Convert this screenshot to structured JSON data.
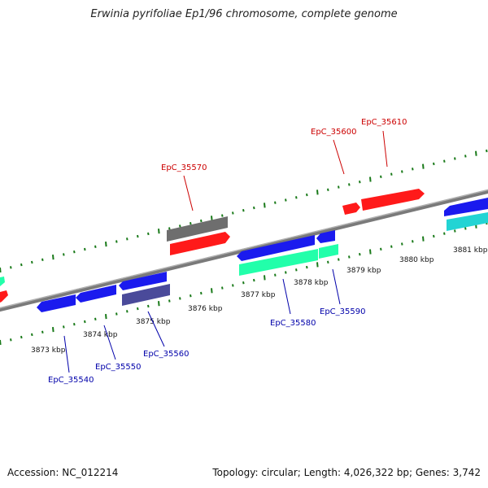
{
  "title": "Erwinia pyrifoliae Ep1/96 chromosome, complete genome",
  "footer": {
    "accession": "Accession: NC_012214",
    "summary": "Topology: circular; Length: 4,026,322 bp; Genes: 3,742"
  },
  "colors": {
    "backbone": "#8c8c8c",
    "tick": "#1a7a1a",
    "label_forward": "#cc0000",
    "label_reverse": "#0000aa",
    "gene_red": "#ff1a1a",
    "gene_blue": "#1a1aee",
    "gene_gray": "#707070",
    "gene_green": "#22ffaa",
    "gene_cyan": "#22d4d4",
    "gene_purple": "#4a4a9a"
  },
  "axis_labels": [
    "3873 kbp",
    "3874 kbp",
    "3875 kbp",
    "3876 kbp",
    "3877 kbp",
    "3878 kbp",
    "3879 kbp",
    "3880 kbp",
    "3881 kbp"
  ],
  "gene_labels": {
    "top": [
      "EpC_35570",
      "EpC_35600",
      "EpC_35610"
    ],
    "bottom": [
      "EpC_35540",
      "EpC_35550",
      "EpC_35560",
      "EpC_35580",
      "EpC_35590"
    ]
  }
}
